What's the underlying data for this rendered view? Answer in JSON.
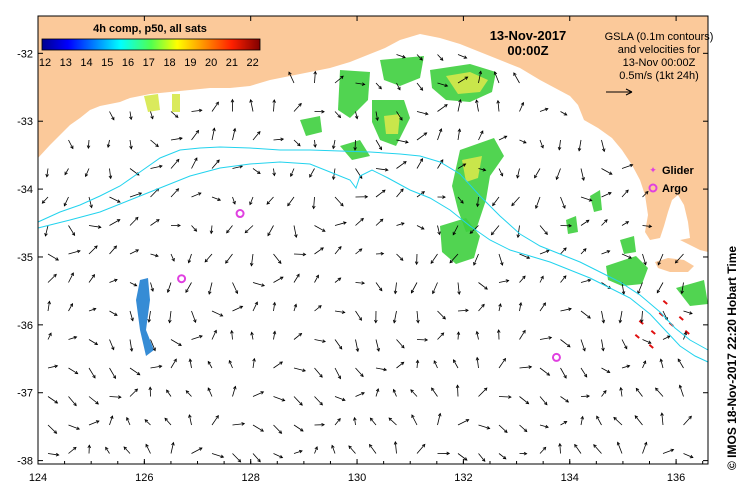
{
  "colorbar": {
    "title": "4h comp, p50, all sats",
    "tick_labels": [
      "12",
      "13",
      "14",
      "15",
      "16",
      "17",
      "18",
      "19",
      "20",
      "21",
      "22"
    ],
    "range": [
      12,
      22.5
    ]
  },
  "date": {
    "line1": "13-Nov-2017",
    "line2": "00:00Z"
  },
  "gsla_note": {
    "line1": "GSLA (0.1m contours)",
    "line2": "and velocities for",
    "line3": "13-Nov 00:00Z",
    "line4": "0.5m/s (1kt 24h)"
  },
  "legend": {
    "glider_label": "Glider",
    "argo_label": "Argo",
    "glider_symbol": "✦"
  },
  "axes": {
    "x_ticks": [
      "124",
      "126",
      "128",
      "130",
      "132",
      "134",
      "136"
    ],
    "x_values": [
      124,
      126,
      128,
      130,
      132,
      134,
      136
    ],
    "y_ticks": [
      "-32",
      "-33",
      "-34",
      "-35",
      "-36",
      "-37",
      "-38"
    ],
    "y_values": [
      -32,
      -33,
      -34,
      -35,
      -36,
      -37,
      -38
    ],
    "lon_range": [
      124,
      136.6
    ],
    "lat_range": [
      -31.45,
      -38.05
    ]
  },
  "credit": "©  IMOS 18-Nov-2017 22:20 Hobart Time",
  "argo_floats": [
    {
      "lon": 127.8,
      "lat": -34.36
    },
    {
      "lon": 126.7,
      "lat": -35.32
    },
    {
      "lon": 133.75,
      "lat": -36.48
    }
  ],
  "colors": {
    "land": "#fbc99a",
    "contour": "#22d3ee",
    "argo": "#e040e0",
    "sst_green": "#3ecf3e",
    "sst_yellow": "#d6e84a",
    "sst_blue": "#2080d0"
  }
}
